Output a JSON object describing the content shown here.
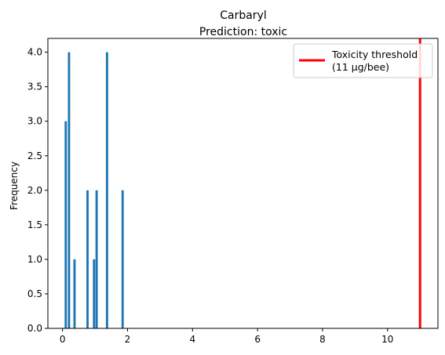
{
  "chart_data": {
    "type": "bar",
    "title": "Carbaryl",
    "subtitle": "Prediction: toxic",
    "xlabel": "",
    "ylabel": "Frequency",
    "xlim": [
      -0.45,
      11.55
    ],
    "ylim": [
      0,
      4.2
    ],
    "xticks": [
      0,
      2,
      4,
      6,
      8,
      10
    ],
    "yticks": [
      0.0,
      0.5,
      1.0,
      1.5,
      2.0,
      2.5,
      3.0,
      3.5,
      4.0
    ],
    "xtick_labels": [
      "0",
      "2",
      "4",
      "6",
      "8",
      "10"
    ],
    "ytick_labels": [
      "0.0",
      "0.5",
      "1.0",
      "1.5",
      "2.0",
      "2.5",
      "3.0",
      "3.5",
      "4.0"
    ],
    "bar_width": 0.07,
    "bar_color": "#1f77b4",
    "bars": [
      {
        "x": 0.1,
        "value": 3
      },
      {
        "x": 0.2,
        "value": 4
      },
      {
        "x": 0.37,
        "value": 1
      },
      {
        "x": 0.77,
        "value": 2
      },
      {
        "x": 0.97,
        "value": 1
      },
      {
        "x": 1.05,
        "value": 2
      },
      {
        "x": 1.37,
        "value": 4
      },
      {
        "x": 1.85,
        "value": 2
      }
    ],
    "threshold": {
      "x": 11,
      "color": "#ff0000"
    },
    "legend": {
      "placement": "upper-right",
      "line1": "Toxicity threshold",
      "line2": "(11 µg/bee)"
    },
    "grid": false
  }
}
